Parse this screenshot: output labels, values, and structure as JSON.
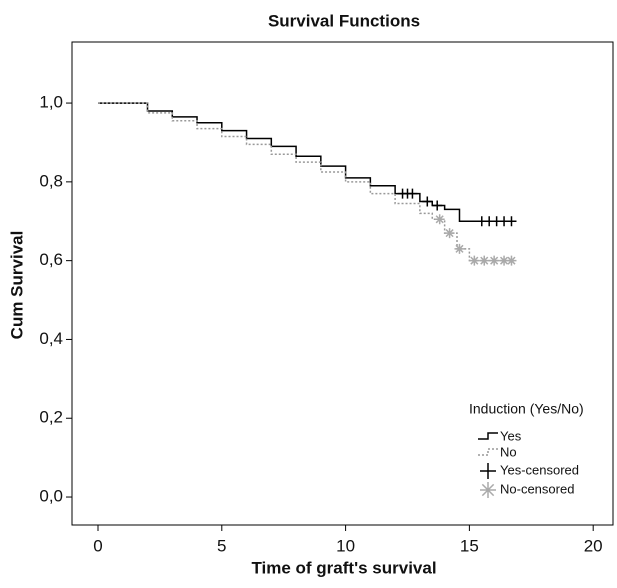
{
  "chart_data": {
    "type": "survival",
    "title": "Survival Functions",
    "x_label": "Time of graft's survival",
    "y_label": "Cum Survival",
    "legend_title": "Induction (Yes/No)",
    "legend_position": "lower right",
    "xlim": [
      -1.05,
      20.8
    ],
    "ylim": [
      -0.071,
      1.155
    ],
    "xticks": [
      0,
      5,
      10,
      15,
      20
    ],
    "yticks": [
      {
        "value": 0,
        "label": "0,0"
      },
      {
        "value": 0.2,
        "label": "0,2"
      },
      {
        "value": 0.4,
        "label": "0,4"
      },
      {
        "value": 0.6,
        "label": "0,6"
      },
      {
        "value": 0.8,
        "label": "0,8"
      },
      {
        "value": 1,
        "label": "1,0"
      }
    ],
    "series": [
      {
        "name": "Yes",
        "color": "#000000",
        "style": "step-solid",
        "x": [
          0,
          1,
          2,
          3,
          4,
          5,
          6,
          7,
          8,
          9,
          10,
          11,
          12,
          13,
          13.5,
          14,
          14.6,
          16.8
        ],
        "values": [
          1,
          1,
          0.98,
          0.965,
          0.95,
          0.93,
          0.91,
          0.89,
          0.865,
          0.84,
          0.81,
          0.79,
          0.77,
          0.75,
          0.74,
          0.73,
          0.7,
          0.7
        ]
      },
      {
        "name": "No",
        "color": "#999999",
        "style": "step-dotted",
        "x": [
          0,
          1,
          2,
          3,
          4,
          5,
          6,
          7,
          8,
          9,
          10,
          11,
          12,
          13,
          13.5,
          14,
          14.5,
          15,
          16.8
        ],
        "values": [
          1,
          1,
          0.975,
          0.955,
          0.935,
          0.915,
          0.895,
          0.87,
          0.85,
          0.825,
          0.8,
          0.77,
          0.745,
          0.72,
          0.705,
          0.67,
          0.63,
          0.6,
          0.6
        ]
      },
      {
        "name": "Yes-censored",
        "color": "#000000",
        "style": "plus",
        "x": [
          12.3,
          12.5,
          12.7,
          13.3,
          13.7,
          15.5,
          15.8,
          16.1,
          16.4,
          16.7
        ],
        "values": [
          0.77,
          0.77,
          0.77,
          0.75,
          0.74,
          0.7,
          0.7,
          0.7,
          0.7,
          0.7
        ]
      },
      {
        "name": "No-censored",
        "color": "#aaaaaa",
        "style": "star",
        "x": [
          13.8,
          14.2,
          14.6,
          15.2,
          15.6,
          16.0,
          16.4,
          16.7
        ],
        "values": [
          0.705,
          0.67,
          0.63,
          0.6,
          0.6,
          0.6,
          0.6,
          0.6
        ]
      }
    ]
  }
}
